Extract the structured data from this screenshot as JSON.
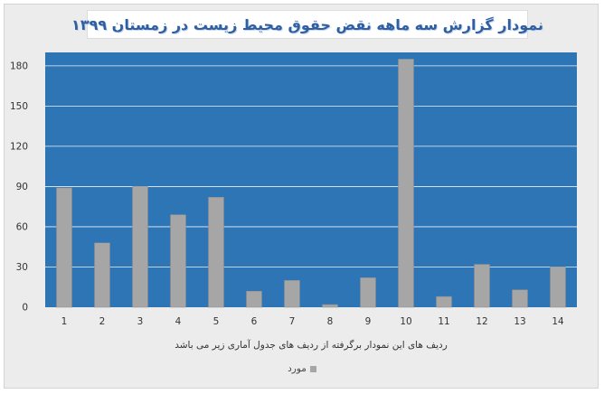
{
  "chart_data": {
    "type": "bar",
    "title": "نمودار گزارش سه ماهه نقض حقوق محیط زیست در زمستان ۱۳۹۹",
    "xlabel": "ردیف های این نمودار برگرفته از ردیف های جدول آماری زیر می باشد",
    "ylabel": "",
    "categories": [
      "1",
      "2",
      "3",
      "4",
      "5",
      "6",
      "7",
      "8",
      "9",
      "10",
      "11",
      "12",
      "13",
      "14"
    ],
    "series": [
      {
        "name": "مورد",
        "values": [
          89,
          48,
          90,
          69,
          82,
          12,
          20,
          2,
          22,
          185,
          8,
          32,
          13,
          30
        ]
      }
    ],
    "ylim": [
      0,
      180
    ],
    "yticks": [
      "0",
      "30",
      "60",
      "90",
      "120",
      "150",
      "180"
    ],
    "grid": true,
    "legend_position": "bottom",
    "colors": {
      "plot_background": "#2e75b6",
      "bar": "#a6a6a6",
      "gridline": "#ffffff",
      "title": "#2e5fa3"
    }
  }
}
